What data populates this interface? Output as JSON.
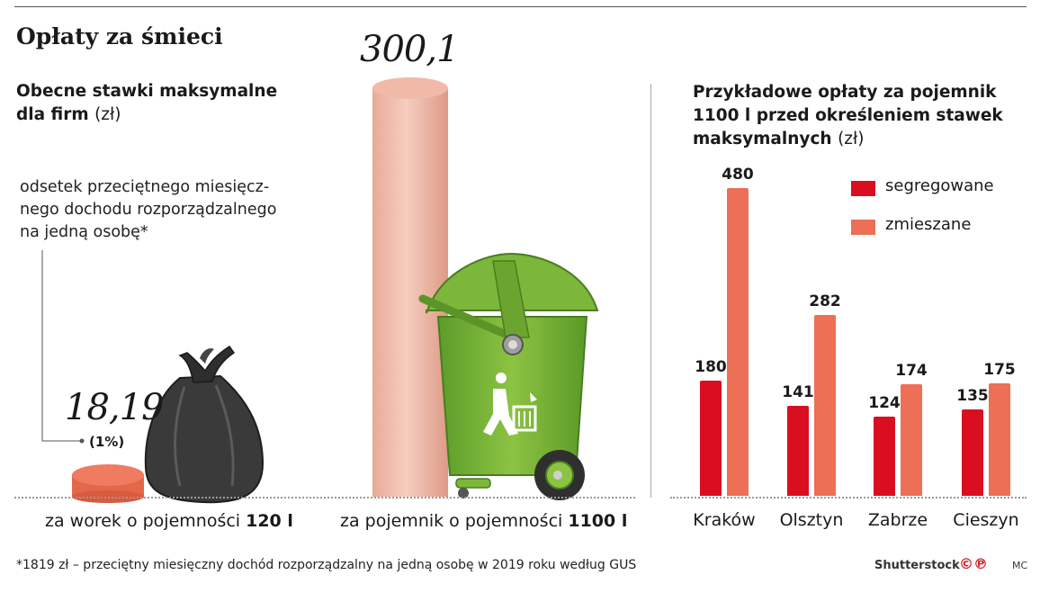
{
  "title": "Opłaty za śmieci",
  "left": {
    "subtitle_bold_1": "Obecne stawki maksymalne",
    "subtitle_bold_2": "dla firm",
    "subtitle_unit": "(zł)",
    "note_line1": "odsetek przeciętnego miesięcz-",
    "note_line2": "nego dochodu rozporządzalnego",
    "note_line3": "na jedną osobę*",
    "bag_value": "18,19",
    "bag_percent": "(1%)",
    "bin_value": "300,1",
    "bag_label_prefix": "za worek o pojemności",
    "bag_label_bold": "120 l",
    "bin_label_prefix": "za pojemnik o pojemności",
    "bin_label_bold": "1100 l"
  },
  "right": {
    "subtitle_line1": "Przykładowe opłaty za pojemnik",
    "subtitle_line2": "1100 l przed określeniem stawek",
    "subtitle_line3": "maksymalnych",
    "subtitle_unit": "(zł)"
  },
  "legend": [
    {
      "label": "segregowane",
      "color": "#d90f21"
    },
    {
      "label": "zmieszane",
      "color": "#ec6f56"
    }
  ],
  "chart_data": [
    {
      "type": "bar",
      "categories": [
        "za worek o pojemności 120 l",
        "za pojemnik o pojemności 1100 l"
      ],
      "values": [
        18.19,
        300.1
      ],
      "value_labels": [
        "18,19",
        "300,1"
      ],
      "annotations": [
        "(1%)"
      ],
      "title": "Obecne stawki maksymalne dla firm (zł)"
    },
    {
      "type": "bar",
      "categories": [
        "Kraków",
        "Olsztyn",
        "Zabrze",
        "Cieszyn"
      ],
      "series": [
        {
          "name": "segregowane",
          "values": [
            180,
            141,
            124,
            135
          ],
          "color": "#d90f21"
        },
        {
          "name": "zmieszane",
          "values": [
            480,
            282,
            174,
            175
          ],
          "color": "#ec6f56"
        }
      ],
      "title": "Przykładowe opłaty za pojemnik 1100 l przed określeniem stawek maksymalnych (zł)",
      "ylim": [
        0,
        480
      ]
    }
  ],
  "footer": {
    "footnote": "*1819 zł – przeciętny miesięczny dochód rozporządzalny na jedną osobę w 2019 roku według GUS",
    "photo_credit": "Shutterstock",
    "cp_logo": "©℗",
    "author": "MC"
  },
  "icons": [
    "garbage-bag-icon",
    "wheelie-bin-icon"
  ]
}
